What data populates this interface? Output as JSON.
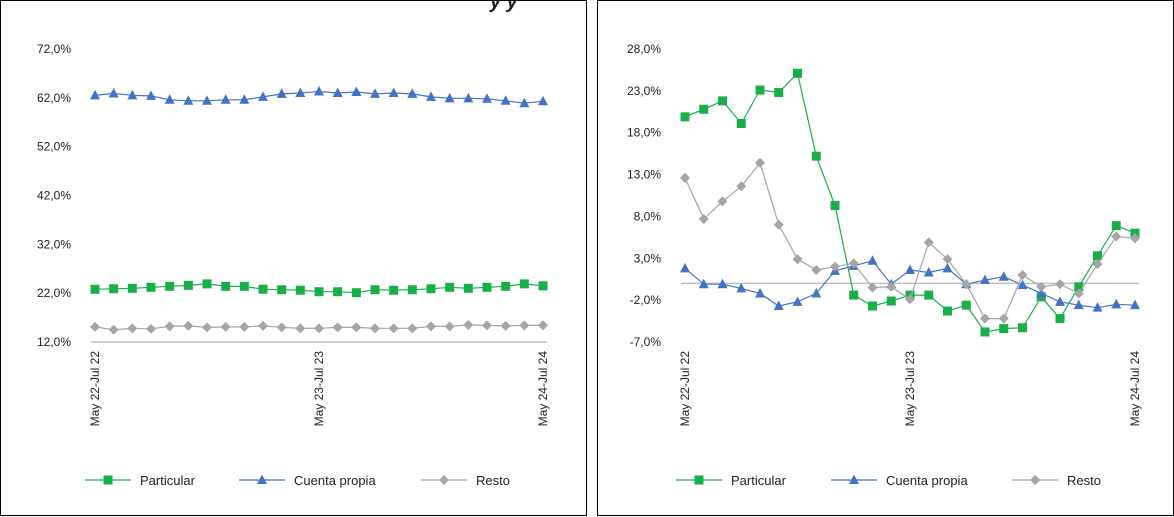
{
  "title_fragment": "y y",
  "colors": {
    "particular": "#1aae4a",
    "cuenta_propia": "#4472c4",
    "resto": "#a5a5a5",
    "zero_line": "#bfbfbf"
  },
  "chart_data": [
    {
      "type": "line",
      "title": "",
      "x_tick_labels": [
        "May 22-Jul 22",
        "May 23-Jul 23",
        "May 24-Jul 24"
      ],
      "x_tick_index": [
        0,
        12,
        24
      ],
      "y_ticks": [
        "12,0%",
        "22,0%",
        "32,0%",
        "42,0%",
        "52,0%",
        "62,0%",
        "72,0%"
      ],
      "ylim": [
        12,
        72
      ],
      "legend_position": "bottom",
      "series": [
        {
          "name": "Particular",
          "marker": "square",
          "color_key": "particular",
          "values": [
            22.8,
            22.9,
            23.0,
            23.2,
            23.4,
            23.6,
            23.9,
            23.4,
            23.4,
            22.8,
            22.7,
            22.6,
            22.3,
            22.3,
            22.1,
            22.7,
            22.6,
            22.7,
            22.9,
            23.2,
            23.0,
            23.2,
            23.4,
            23.9,
            23.5
          ]
        },
        {
          "name": "Cuenta propia",
          "marker": "triangle",
          "color_key": "cuenta_propia",
          "values": [
            62.5,
            62.9,
            62.5,
            62.4,
            61.6,
            61.4,
            61.4,
            61.6,
            61.6,
            62.2,
            62.8,
            63.0,
            63.3,
            63.0,
            63.2,
            62.8,
            63.0,
            62.8,
            62.2,
            61.9,
            61.9,
            61.8,
            61.4,
            60.9,
            61.3
          ]
        },
        {
          "name": "Resto",
          "marker": "diamond",
          "color_key": "resto",
          "values": [
            15.1,
            14.5,
            14.8,
            14.7,
            15.2,
            15.3,
            15.0,
            15.1,
            15.1,
            15.3,
            15.0,
            14.8,
            14.8,
            15.0,
            15.0,
            14.8,
            14.8,
            14.8,
            15.2,
            15.2,
            15.5,
            15.4,
            15.3,
            15.4,
            15.4
          ]
        }
      ]
    },
    {
      "type": "line",
      "title": "",
      "x_tick_labels": [
        "May 22-Jul 22",
        "May 23-Jul 23",
        "May 24-Jul 24"
      ],
      "x_tick_index": [
        0,
        12,
        24
      ],
      "y_ticks": [
        "-7,0%",
        "-2,0%",
        "3,0%",
        "8,0%",
        "13,0%",
        "18,0%",
        "23,0%",
        "28,0%"
      ],
      "ylim": [
        -7,
        28
      ],
      "legend_position": "bottom",
      "series": [
        {
          "name": "Particular",
          "marker": "square",
          "color_key": "particular",
          "values": [
            19.9,
            20.8,
            21.8,
            19.1,
            23.1,
            22.8,
            25.1,
            15.2,
            9.3,
            -1.4,
            -2.7,
            -2.1,
            -1.4,
            -1.4,
            -3.3,
            -2.6,
            -5.8,
            -5.4,
            -5.3,
            -1.6,
            -4.2,
            -0.4,
            3.3,
            6.9,
            6.0
          ]
        },
        {
          "name": "Cuenta propia",
          "marker": "triangle",
          "color_key": "cuenta_propia",
          "values": [
            1.8,
            -0.1,
            -0.1,
            -0.6,
            -1.2,
            -2.7,
            -2.2,
            -1.2,
            1.5,
            2.1,
            2.7,
            -0.1,
            1.6,
            1.3,
            1.8,
            -0.1,
            0.4,
            0.8,
            -0.2,
            -1.2,
            -2.2,
            -2.6,
            -2.9,
            -2.5,
            -2.6
          ]
        },
        {
          "name": "Resto",
          "marker": "diamond",
          "color_key": "resto",
          "values": [
            12.6,
            7.7,
            9.8,
            11.6,
            14.4,
            7.0,
            2.9,
            1.6,
            2.0,
            2.4,
            -0.5,
            -0.4,
            -1.9,
            4.9,
            2.9,
            -0.1,
            -4.2,
            -4.2,
            1.0,
            -0.4,
            -0.1,
            -1.2,
            2.3,
            5.6,
            5.4
          ]
        }
      ]
    }
  ]
}
